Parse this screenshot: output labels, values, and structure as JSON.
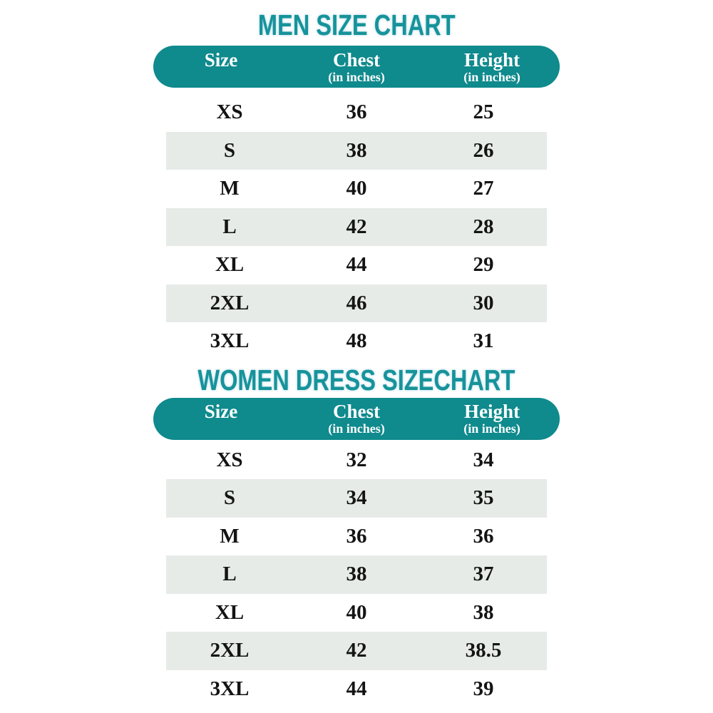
{
  "colors": {
    "teal_header_bg": "#0f8a8d",
    "title_teal": "#16939a",
    "row_stripe": "#e6ebe8",
    "header_text": "#ffffff",
    "data_text": "#141414",
    "page_background": "#ffffff"
  },
  "tables": [
    {
      "title": "MEN SIZE CHART",
      "columns": [
        {
          "label": "Size",
          "sub": ""
        },
        {
          "label": "Chest",
          "sub": "(in inches)"
        },
        {
          "label": "Height",
          "sub": "(in inches)"
        }
      ],
      "rows": [
        [
          "XS",
          "36",
          "25"
        ],
        [
          "S",
          "38",
          "26"
        ],
        [
          "M",
          "40",
          "27"
        ],
        [
          "L",
          "42",
          "28"
        ],
        [
          "XL",
          "44",
          "29"
        ],
        [
          "2XL",
          "46",
          "30"
        ],
        [
          "3XL",
          "48",
          "31"
        ]
      ]
    },
    {
      "title": "WOMEN DRESS SIZECHART",
      "columns": [
        {
          "label": "Size",
          "sub": ""
        },
        {
          "label": "Chest",
          "sub": "(in inches)"
        },
        {
          "label": "Height",
          "sub": "(in inches)"
        }
      ],
      "rows": [
        [
          "XS",
          "32",
          "34"
        ],
        [
          "S",
          "34",
          "35"
        ],
        [
          "M",
          "36",
          "36"
        ],
        [
          "L",
          "38",
          "37"
        ],
        [
          "XL",
          "40",
          "38"
        ],
        [
          "2XL",
          "42",
          "38.5"
        ],
        [
          "3XL",
          "44",
          "39"
        ]
      ]
    }
  ]
}
